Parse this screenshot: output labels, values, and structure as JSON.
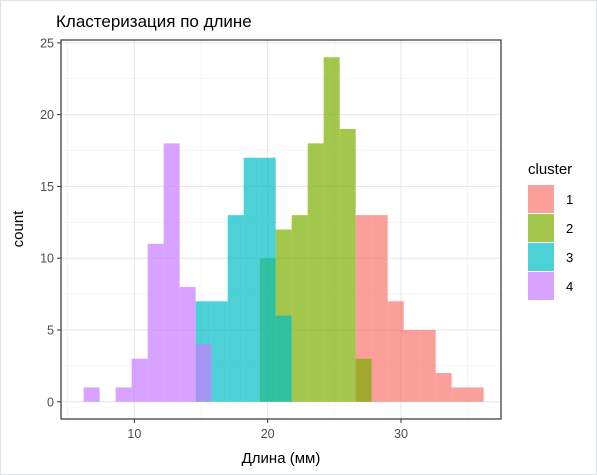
{
  "chart_data": {
    "type": "bar",
    "title": "Кластеризация по длине",
    "xlabel": "Длина (мм)",
    "ylabel": "count",
    "xlim": [
      4.5,
      37.5
    ],
    "ylim": [
      -1.2,
      25.2
    ],
    "xticks": [
      10,
      20,
      30
    ],
    "yticks": [
      0,
      5,
      10,
      15,
      20,
      25
    ],
    "x_minor_grid": [
      5,
      15,
      25,
      35
    ],
    "y_minor_grid": [
      2.5,
      7.5,
      12.5,
      17.5,
      22.5
    ],
    "bin_width": 1.2,
    "grid": true,
    "legend": {
      "title": "cluster",
      "position": "right"
    },
    "series": [
      {
        "name": "1",
        "color": "#F8766D",
        "bins": [
          [
            27.2,
            13
          ],
          [
            28.4,
            13
          ],
          [
            29.6,
            7
          ],
          [
            30.8,
            5
          ],
          [
            32.0,
            5
          ],
          [
            33.2,
            2
          ],
          [
            34.4,
            1
          ],
          [
            35.6,
            1
          ]
        ]
      },
      {
        "name": "2",
        "color": "#7CAE00",
        "bins": [
          [
            20.0,
            10
          ],
          [
            21.2,
            12
          ],
          [
            22.4,
            13
          ],
          [
            23.6,
            18
          ],
          [
            24.8,
            24
          ],
          [
            26.0,
            19
          ],
          [
            27.2,
            3
          ]
        ]
      },
      {
        "name": "3",
        "color": "#00BFC4",
        "bins": [
          [
            15.2,
            7
          ],
          [
            16.4,
            7
          ],
          [
            17.6,
            13
          ],
          [
            18.8,
            17
          ],
          [
            20.0,
            17
          ],
          [
            21.2,
            6
          ]
        ]
      },
      {
        "name": "4",
        "color": "#C77CFF",
        "bins": [
          [
            6.8,
            1
          ],
          [
            9.2,
            1
          ],
          [
            10.4,
            3
          ],
          [
            11.6,
            11
          ],
          [
            12.8,
            18
          ],
          [
            14.0,
            8
          ],
          [
            15.2,
            4
          ]
        ]
      }
    ]
  }
}
